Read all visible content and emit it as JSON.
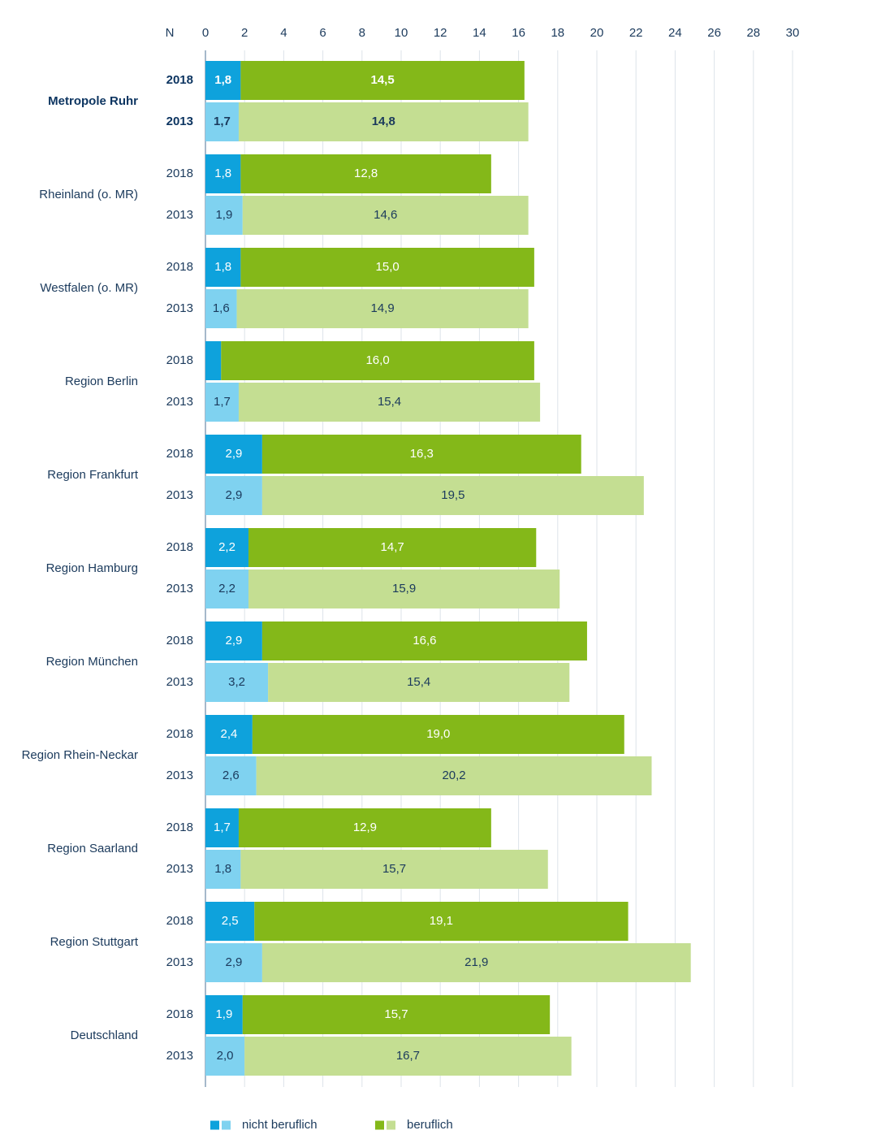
{
  "chart_data": {
    "type": "bar",
    "orientation": "horizontal",
    "stacked": true,
    "n_label": "N",
    "xlim": [
      0,
      30
    ],
    "xticks": [
      0,
      2,
      4,
      6,
      8,
      10,
      12,
      14,
      16,
      18,
      20,
      22,
      24,
      26,
      28,
      30
    ],
    "grid": true,
    "legend_position": "bottom",
    "highlight_group": "Metropole Ruhr",
    "colors": {
      "nicht_beruflich_2018": "#0ea2dc",
      "nicht_beruflich_2013": "#7fd2f0",
      "beruflich_2018": "#84b819",
      "beruflich_2013": "#c4de92",
      "grid": "#dde3ea",
      "axis": "#6a8aa8",
      "text": "#1b3a5c"
    },
    "series": [
      {
        "name": "nicht beruflich",
        "key": "nicht_beruflich"
      },
      {
        "name": "beruflich",
        "key": "beruflich"
      }
    ],
    "groups": [
      {
        "name": "Metropole Ruhr",
        "rows": [
          {
            "year": "2018",
            "nicht_beruflich": 1.8,
            "nicht_beruflich_label": "1,8",
            "beruflich": 14.5,
            "beruflich_label": "14,5"
          },
          {
            "year": "2013",
            "nicht_beruflich": 1.7,
            "nicht_beruflich_label": "1,7",
            "beruflich": 14.8,
            "beruflich_label": "14,8"
          }
        ]
      },
      {
        "name": "Rheinland (o. MR)",
        "rows": [
          {
            "year": "2018",
            "nicht_beruflich": 1.8,
            "nicht_beruflich_label": "1,8",
            "beruflich": 12.8,
            "beruflich_label": "12,8"
          },
          {
            "year": "2013",
            "nicht_beruflich": 1.9,
            "nicht_beruflich_label": "1,9",
            "beruflich": 14.6,
            "beruflich_label": "14,6"
          }
        ]
      },
      {
        "name": "Westfalen (o. MR)",
        "rows": [
          {
            "year": "2018",
            "nicht_beruflich": 1.8,
            "nicht_beruflich_label": "1,8",
            "beruflich": 15.0,
            "beruflich_label": "15,0"
          },
          {
            "year": "2013",
            "nicht_beruflich": 1.6,
            "nicht_beruflich_label": "1,6",
            "beruflich": 14.9,
            "beruflich_label": "14,9"
          }
        ]
      },
      {
        "name": "Region Berlin",
        "rows": [
          {
            "year": "2018",
            "nicht_beruflich": 0.8,
            "nicht_beruflich_label": "",
            "beruflich": 16.0,
            "beruflich_label": "16,0"
          },
          {
            "year": "2013",
            "nicht_beruflich": 1.7,
            "nicht_beruflich_label": "1,7",
            "beruflich": 15.4,
            "beruflich_label": "15,4"
          }
        ]
      },
      {
        "name": "Region Frankfurt",
        "rows": [
          {
            "year": "2018",
            "nicht_beruflich": 2.9,
            "nicht_beruflich_label": "2,9",
            "beruflich": 16.3,
            "beruflich_label": "16,3"
          },
          {
            "year": "2013",
            "nicht_beruflich": 2.9,
            "nicht_beruflich_label": "2,9",
            "beruflich": 19.5,
            "beruflich_label": "19,5"
          }
        ]
      },
      {
        "name": "Region Hamburg",
        "rows": [
          {
            "year": "2018",
            "nicht_beruflich": 2.2,
            "nicht_beruflich_label": "2,2",
            "beruflich": 14.7,
            "beruflich_label": "14,7"
          },
          {
            "year": "2013",
            "nicht_beruflich": 2.2,
            "nicht_beruflich_label": "2,2",
            "beruflich": 15.9,
            "beruflich_label": "15,9"
          }
        ]
      },
      {
        "name": "Region München",
        "rows": [
          {
            "year": "2018",
            "nicht_beruflich": 2.9,
            "nicht_beruflich_label": "2,9",
            "beruflich": 16.6,
            "beruflich_label": "16,6"
          },
          {
            "year": "2013",
            "nicht_beruflich": 3.2,
            "nicht_beruflich_label": "3,2",
            "beruflich": 15.4,
            "beruflich_label": "15,4"
          }
        ]
      },
      {
        "name": "Region Rhein-Neckar",
        "rows": [
          {
            "year": "2018",
            "nicht_beruflich": 2.4,
            "nicht_beruflich_label": "2,4",
            "beruflich": 19.0,
            "beruflich_label": "19,0"
          },
          {
            "year": "2013",
            "nicht_beruflich": 2.6,
            "nicht_beruflich_label": "2,6",
            "beruflich": 20.2,
            "beruflich_label": "20,2"
          }
        ]
      },
      {
        "name": "Region Saarland",
        "rows": [
          {
            "year": "2018",
            "nicht_beruflich": 1.7,
            "nicht_beruflich_label": "1,7",
            "beruflich": 12.9,
            "beruflich_label": "12,9"
          },
          {
            "year": "2013",
            "nicht_beruflich": 1.8,
            "nicht_beruflich_label": "1,8",
            "beruflich": 15.7,
            "beruflich_label": "15,7"
          }
        ]
      },
      {
        "name": "Region Stuttgart",
        "rows": [
          {
            "year": "2018",
            "nicht_beruflich": 2.5,
            "nicht_beruflich_label": "2,5",
            "beruflich": 19.1,
            "beruflich_label": "19,1"
          },
          {
            "year": "2013",
            "nicht_beruflich": 2.9,
            "nicht_beruflich_label": "2,9",
            "beruflich": 21.9,
            "beruflich_label": "21,9"
          }
        ]
      },
      {
        "name": "Deutschland",
        "rows": [
          {
            "year": "2018",
            "nicht_beruflich": 1.9,
            "nicht_beruflich_label": "1,9",
            "beruflich": 15.7,
            "beruflich_label": "15,7"
          },
          {
            "year": "2013",
            "nicht_beruflich": 2.0,
            "nicht_beruflich_label": "2,0",
            "beruflich": 16.7,
            "beruflich_label": "16,7"
          }
        ]
      }
    ]
  }
}
